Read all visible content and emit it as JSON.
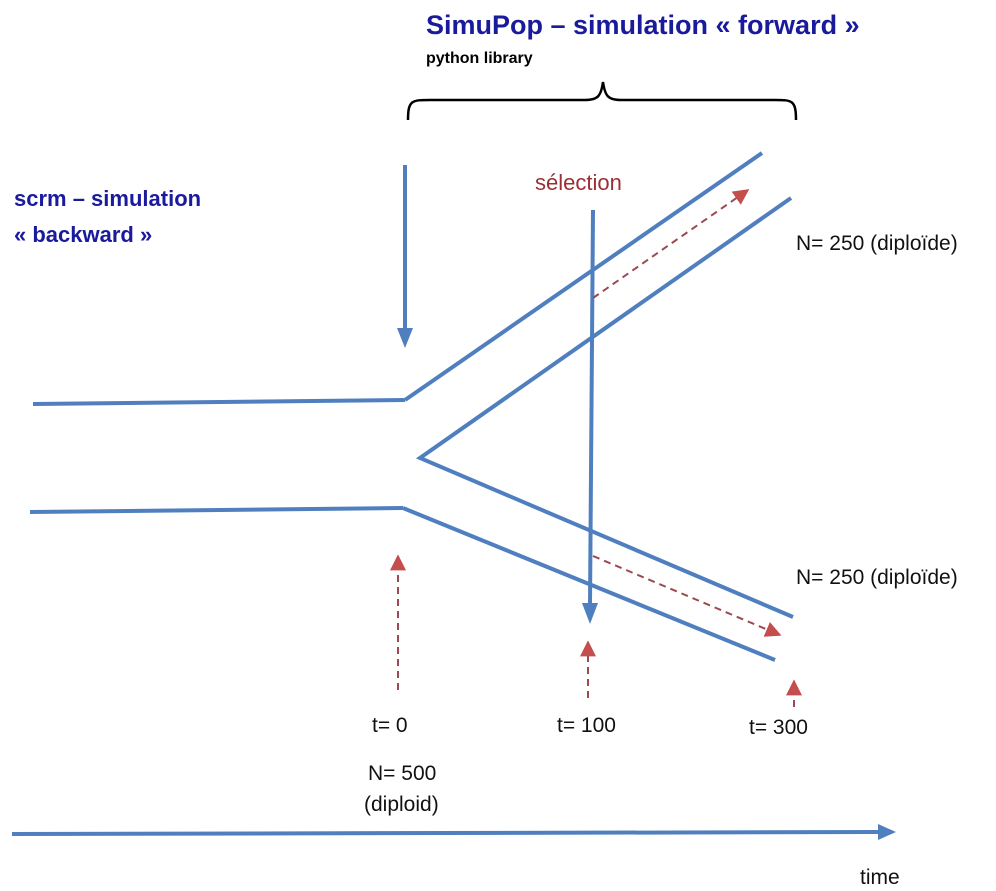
{
  "forward": {
    "title": "SimuPop – simulation « forward »",
    "subtitle": "python library"
  },
  "backward": {
    "line1": "scrm – simulation",
    "line2": "« backward »"
  },
  "selection_label": "sélection",
  "population_labels": {
    "upper": "N= 250 (diploïde)",
    "lower": "N= 250 (diploïde)",
    "ancestral_n": "N= 500",
    "ancestral_ploidy": "(diploid)"
  },
  "time_labels": {
    "t0": "t= 0",
    "t100": "t= 100",
    "t300": "t= 300"
  },
  "axis_label": "time",
  "colors": {
    "line_blue": "#4f7fbf",
    "arrow_red_dashed": "#9b4a52",
    "title_blue": "#1a1a9c",
    "selection_red": "#9b2f35"
  }
}
